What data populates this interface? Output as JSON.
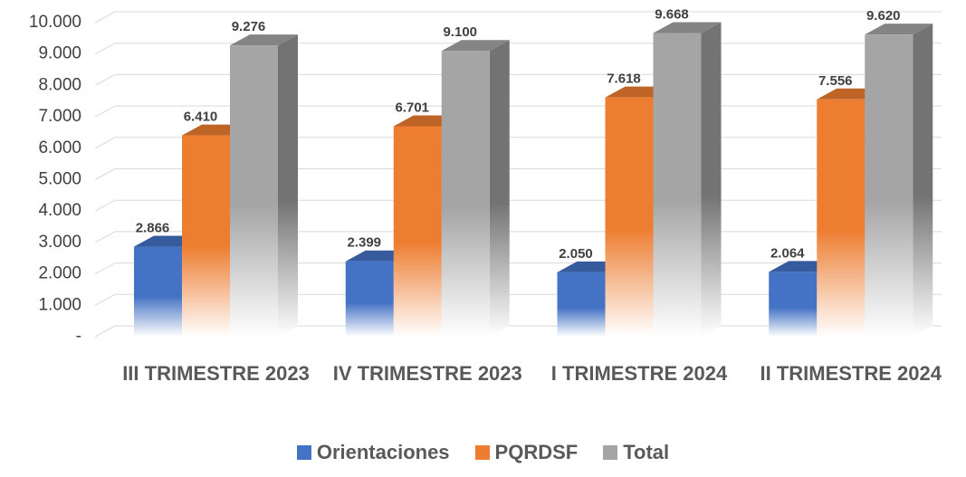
{
  "chart_data": {
    "type": "bar3d",
    "categories": [
      "III TRIMESTRE 2023",
      "IV TRIMESTRE 2023",
      "I TRIMESTRE 2024",
      "II TRIMESTRE 2024"
    ],
    "series": [
      {
        "name": "Orientaciones",
        "color": "#4472c4",
        "values": [
          2866,
          2399,
          2050,
          2064
        ],
        "value_labels": [
          "2.866",
          "2.399",
          "2.050",
          "2.064"
        ]
      },
      {
        "name": "PQRDSF",
        "color": "#ed7d31",
        "values": [
          6410,
          6701,
          7618,
          7556
        ],
        "value_labels": [
          "6.410",
          "6.701",
          "7.618",
          "7.556"
        ]
      },
      {
        "name": "Total",
        "color": "#a5a5a5",
        "values": [
          9276,
          9100,
          9668,
          9620
        ],
        "value_labels": [
          "9.276",
          "9.100",
          "9.668",
          "9.620"
        ]
      }
    ],
    "ylim": [
      0,
      10000
    ],
    "yticks": [
      {
        "value": 0,
        "label": "-"
      },
      {
        "value": 1000,
        "label": "1.000"
      },
      {
        "value": 2000,
        "label": "2.000"
      },
      {
        "value": 3000,
        "label": "3.000"
      },
      {
        "value": 4000,
        "label": "4.000"
      },
      {
        "value": 5000,
        "label": "5.000"
      },
      {
        "value": 6000,
        "label": "6.000"
      },
      {
        "value": 7000,
        "label": "7.000"
      },
      {
        "value": 8000,
        "label": "8.000"
      },
      {
        "value": 9000,
        "label": "9.000"
      },
      {
        "value": 10000,
        "label": "10.000"
      }
    ],
    "grid": true,
    "legend": "bottom"
  }
}
